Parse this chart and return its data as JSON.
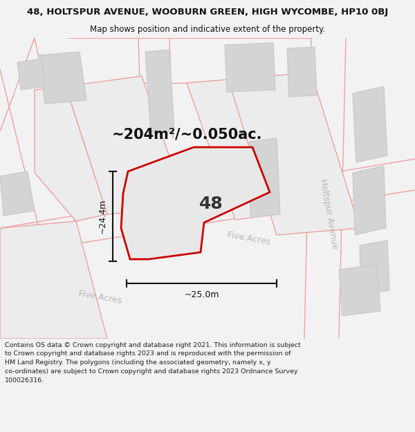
{
  "title_line1": "48, HOLTSPUR AVENUE, WOOBURN GREEN, HIGH WYCOMBE, HP10 0BJ",
  "title_line2": "Map shows position and indicative extent of the property.",
  "area_text": "~204m²/~0.050ac.",
  "label_48": "48",
  "label_width": "~25.0m",
  "label_height": "~24.4m",
  "road_label_five_acres": "Five Acres",
  "road_label_holtspur": "Holtspur Avenue",
  "footer_text": "Contains OS data © Crown copyright and database right 2021. This information is subject\nto Crown copyright and database rights 2023 and is reproduced with the permission of\nHM Land Registry. The polygons (including the associated geometry, namely x, y\nco-ordinates) are subject to Crown copyright and database rights 2023 Ordnance Survey\n100026316.",
  "fig_bg": "#f2f2f2",
  "map_bg": "#ececec",
  "header_bg": "#ffffff",
  "building_fill": "#d4d4d4",
  "building_edge": "#c8c8c8",
  "property_fill": "#e8e8e8",
  "property_edge": "#cc0000",
  "property_lw": 2.0,
  "pink_color": "#f0a0a0",
  "dim_color": "#111111",
  "road_text_color": "#b8b8b8",
  "title_fontsize": 9.5,
  "subtitle_fontsize": 8.5,
  "area_fontsize": 15,
  "num_fontsize": 18,
  "dim_fontsize": 9,
  "road_fontsize": 9,
  "footer_fontsize": 6.8
}
